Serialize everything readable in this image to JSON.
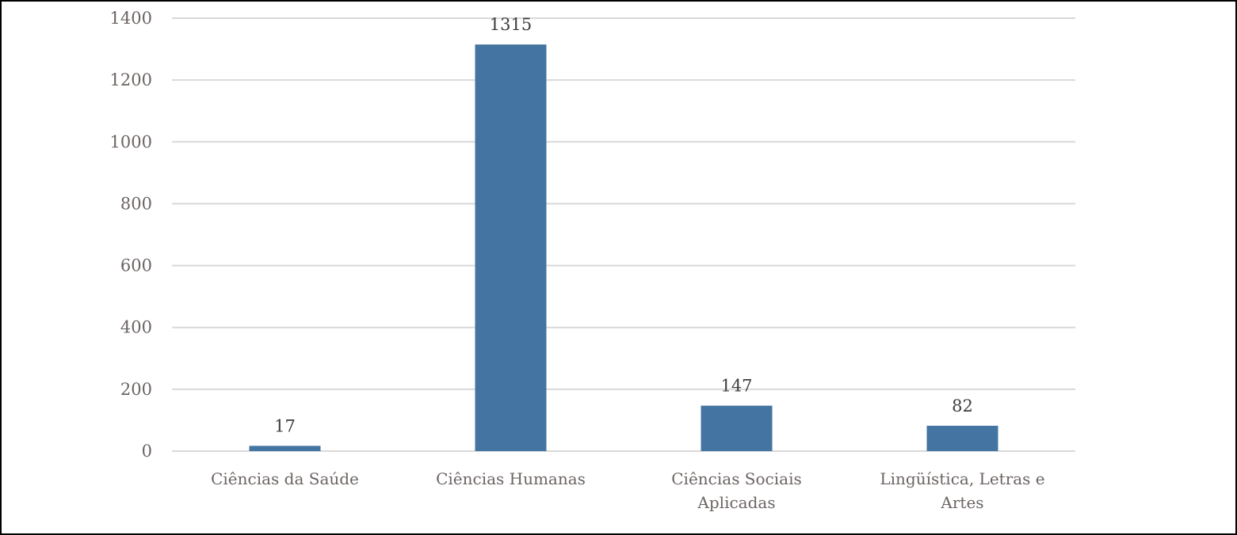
{
  "chart_data": {
    "type": "bar",
    "categories": [
      [
        "Ciências da Saúde"
      ],
      [
        "Ciências Humanas"
      ],
      [
        "Ciências Sociais",
        "Aplicadas"
      ],
      [
        "Lingüística, Letras e",
        "Artes"
      ]
    ],
    "values": [
      17,
      1315,
      147,
      82
    ],
    "value_labels": [
      "17",
      "1315",
      "147",
      "82"
    ],
    "ylim": [
      0,
      1400
    ],
    "yticks": [
      0,
      200,
      400,
      600,
      800,
      1000,
      1200,
      1400
    ],
    "grid": true,
    "legend": "none",
    "title": "",
    "xlabel": "",
    "ylabel": "",
    "colors": {
      "bar": "#4474a1",
      "grid": "#d9d9d9",
      "tick_text": "#6b6462",
      "label_text": "#3d3d3d"
    }
  }
}
